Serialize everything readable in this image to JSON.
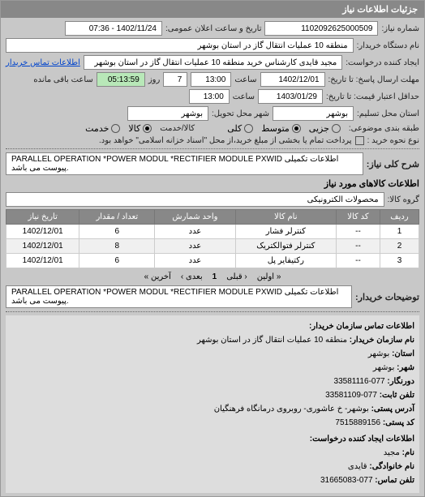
{
  "header": "جزئیات اطلاعات نیاز",
  "need_number": {
    "label": "شماره نیاز:",
    "value": "1102092625000509"
  },
  "announce_dt": {
    "label": "تاریخ و ساعت اعلان عمومی:",
    "value": "1402/11/24 - 07:36"
  },
  "buyer_org": {
    "label": "نام دستگاه خریدار:",
    "value": "منطقه 10 عملیات انتقال گاز در استان بوشهر"
  },
  "requester": {
    "label": "ایجاد کننده درخواست:",
    "value": "مجید قایدی کارشناس خرید منطقه 10 عملیات انتقال گاز در استان بوشهر"
  },
  "contact_link": "اطلاعات تماس خریدار",
  "deadline": {
    "label": "مهلت ارسال پاسخ: تا تاریخ:",
    "date": "1402/12/01",
    "time_label": "ساعت",
    "time": "13:00"
  },
  "remaining": {
    "days": "7",
    "days_label": "روز",
    "clock": "05:13:59",
    "suffix": "ساعت باقی مانده"
  },
  "quote_valid": {
    "label": "حداقل اعتبار قیمت: تا تاریخ:",
    "date": "1403/01/29",
    "time_label": "ساعت",
    "time": "13:00"
  },
  "location": {
    "label": "استان محل تسلیم:",
    "province": "بوشهر",
    "city_label": "شهر محل تحویل:",
    "city": "بوشهر"
  },
  "budget_row": {
    "label": "طبقه بندی موضوعی:",
    "options": [
      "جزیی",
      "متوسط",
      "کلی"
    ],
    "selected": 1,
    "item2_label": "کالا/خدمت",
    "item2_opts": [
      "کالا",
      "خدمت"
    ],
    "item2_sel": 0
  },
  "payment_note": {
    "label": "نوع نحوه خرید :",
    "text": "پرداخت تمام یا بخشی از مبلغ خرید،از محل \"اسناد خزانه اسلامی\" خواهد بود."
  },
  "main_spec": {
    "label": "شرح کلی نیاز:",
    "value": "PARALLEL OPERATION *POWER MODUL *RECTIFIER MODULE PXWID اطلاعات تکمیلی پیوست می باشد."
  },
  "items_title": "اطلاعات کالاهای مورد نیاز",
  "group": {
    "label": "گروه کالا:",
    "value": "محصولات الکترونیکی"
  },
  "table": {
    "headers": [
      "ردیف",
      "کد کالا",
      "نام کالا",
      "واحد شمارش",
      "تعداد / مقدار",
      "تاریخ نیاز"
    ],
    "rows": [
      [
        "1",
        "--",
        "کنترلر فشار",
        "عدد",
        "6",
        "1402/12/01"
      ],
      [
        "2",
        "--",
        "کنترلر فتوالکتریک",
        "عدد",
        "8",
        "1402/12/01"
      ],
      [
        "3",
        "--",
        "رکتیفایر پل",
        "عدد",
        "6",
        "1402/12/01"
      ]
    ]
  },
  "pagination": {
    "first": "« اولین",
    "prev": "‹ قبلی",
    "page": "1",
    "next": "بعدی ›",
    "last": "آخرین »"
  },
  "buyer_notes": {
    "label": "توضیحات خریدار:",
    "value": "PARALLEL OPERATION *POWER MODUL *RECTIFIER MODULE PXWID اطلاعات تکمیلی پیوست می باشد."
  },
  "contact_block": {
    "title": "اطلاعات تماس سازمان خریدار:",
    "lines": [
      {
        "label": "نام سازمان خریدار:",
        "value": "منطقه 10 عملیات انتقال گاز در استان بوشهر"
      },
      {
        "label": "استان:",
        "value": "بوشهر"
      },
      {
        "label": "شهر:",
        "value": "بوشهر"
      },
      {
        "label": "دورنگار:",
        "value": "077-33581116"
      },
      {
        "label": "تلفن ثابت:",
        "value": "077-33581109"
      },
      {
        "label": "آدرس پستی:",
        "value": "بوشهر- خ عاشوری- روبروی درمانگاه فرهنگیان"
      },
      {
        "label": "کد پستی:",
        "value": "7515889156"
      }
    ],
    "creator_title": "اطلاعات ایجاد کننده درخواست:",
    "creator_lines": [
      {
        "label": "نام:",
        "value": "مجید"
      },
      {
        "label": "نام خانوادگی:",
        "value": "قایدی"
      },
      {
        "label": "تلفن تماس:",
        "value": "077-31665083"
      }
    ]
  }
}
